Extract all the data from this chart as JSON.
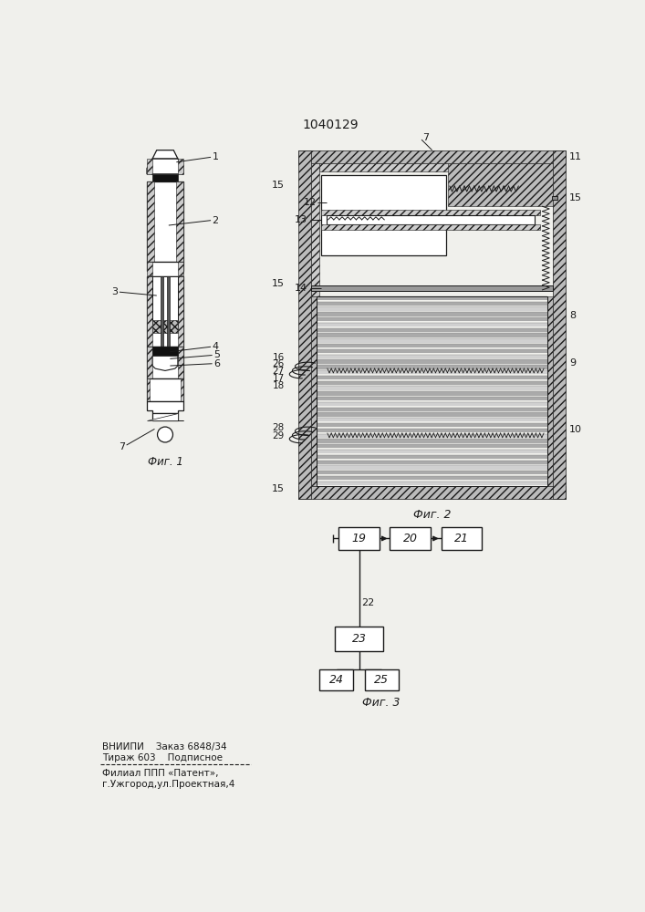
{
  "title": "1040129",
  "fig1_caption": "Фиг. 1",
  "fig2_caption": "Фиг. 2",
  "fig3_caption": "Фиг. 3",
  "footer_line1": "ВНИИПИ    Заказ 6848/34",
  "footer_line2": "Тираж 603    Подписное",
  "footer_line3": "Филиал ППП «Патент»,",
  "footer_line4": "г.Ужгород,ул.Проектная,4",
  "bg_color": "#f0f0ec",
  "line_color": "#1a1a1a"
}
